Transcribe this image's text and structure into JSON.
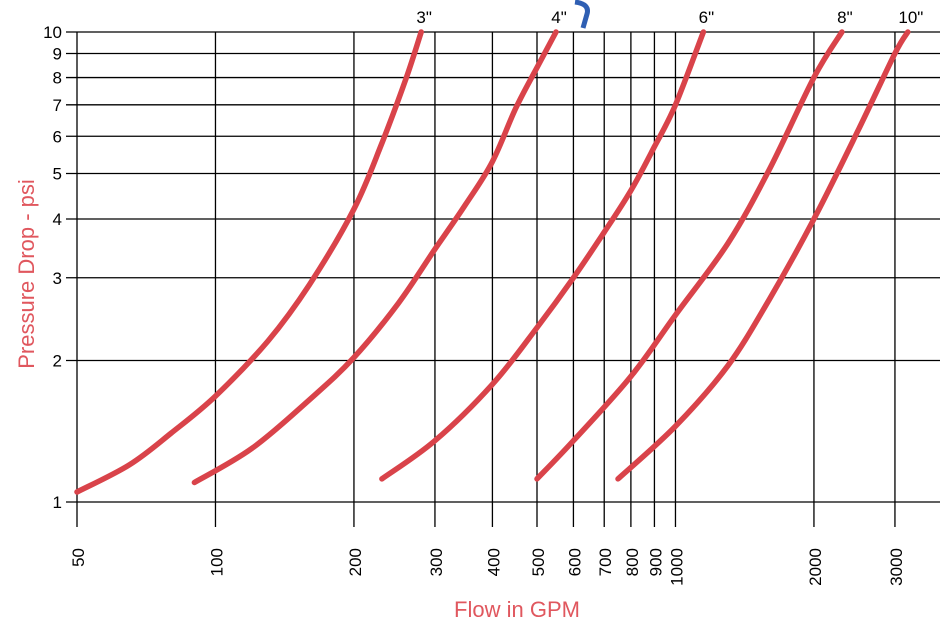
{
  "chart_data": {
    "type": "line",
    "title": "",
    "xlabel": "Flow in GPM",
    "ylabel": "Pressure Drop - psi",
    "x_scale": "log",
    "y_scale": "log",
    "xlim": [
      50,
      3500
    ],
    "ylim": [
      1,
      10
    ],
    "x_ticks": [
      50,
      100,
      200,
      300,
      400,
      500,
      600,
      700,
      800,
      900,
      1000,
      2000,
      3000
    ],
    "x_tick_labels": [
      "50",
      "100",
      "200",
      "300",
      "400",
      "500",
      "600",
      "700",
      "800",
      "900",
      "1000",
      "2000",
      "3000"
    ],
    "y_ticks": [
      1,
      2,
      3,
      4,
      5,
      6,
      7,
      8,
      9,
      10
    ],
    "y_tick_labels": [
      "1",
      "2",
      "3",
      "4",
      "5",
      "6",
      "7",
      "8",
      "9",
      "10"
    ],
    "grid": true,
    "series": [
      {
        "name": "3\"",
        "points": [
          [
            50,
            1.05
          ],
          [
            65,
            1.2
          ],
          [
            80,
            1.4
          ],
          [
            100,
            1.68
          ],
          [
            130,
            2.2
          ],
          [
            160,
            2.9
          ],
          [
            200,
            4.2
          ],
          [
            230,
            5.8
          ],
          [
            260,
            8.0
          ],
          [
            280,
            10.0
          ]
        ]
      },
      {
        "name": "4\"",
        "points": [
          [
            90,
            1.1
          ],
          [
            120,
            1.3
          ],
          [
            160,
            1.65
          ],
          [
            200,
            2.03
          ],
          [
            250,
            2.65
          ],
          [
            300,
            3.45
          ],
          [
            350,
            4.3
          ],
          [
            400,
            5.3
          ],
          [
            450,
            6.9
          ],
          [
            500,
            8.4
          ],
          [
            550,
            10.0
          ]
        ]
      },
      {
        "name": "6\"",
        "points": [
          [
            230,
            1.12
          ],
          [
            300,
            1.35
          ],
          [
            400,
            1.78
          ],
          [
            500,
            2.35
          ],
          [
            600,
            3.0
          ],
          [
            700,
            3.75
          ],
          [
            800,
            4.6
          ],
          [
            900,
            5.7
          ],
          [
            1000,
            7.0
          ],
          [
            1150,
            10.0
          ]
        ]
      },
      {
        "name": "8\"",
        "points": [
          [
            500,
            1.12
          ],
          [
            600,
            1.35
          ],
          [
            800,
            1.85
          ],
          [
            1000,
            2.5
          ],
          [
            1300,
            3.55
          ],
          [
            1600,
            5.1
          ],
          [
            2000,
            8.0
          ],
          [
            2300,
            10.0
          ]
        ]
      },
      {
        "name": "10\"",
        "points": [
          [
            750,
            1.12
          ],
          [
            1000,
            1.45
          ],
          [
            1300,
            1.95
          ],
          [
            1600,
            2.7
          ],
          [
            2000,
            4.0
          ],
          [
            2500,
            6.2
          ],
          [
            3000,
            9.0
          ],
          [
            3200,
            10.0
          ]
        ]
      }
    ]
  },
  "colors": {
    "curve": "#d9434a",
    "axis_title": "#e0575e",
    "grid": "#000000",
    "title_fragment": "#2f5fb3"
  }
}
